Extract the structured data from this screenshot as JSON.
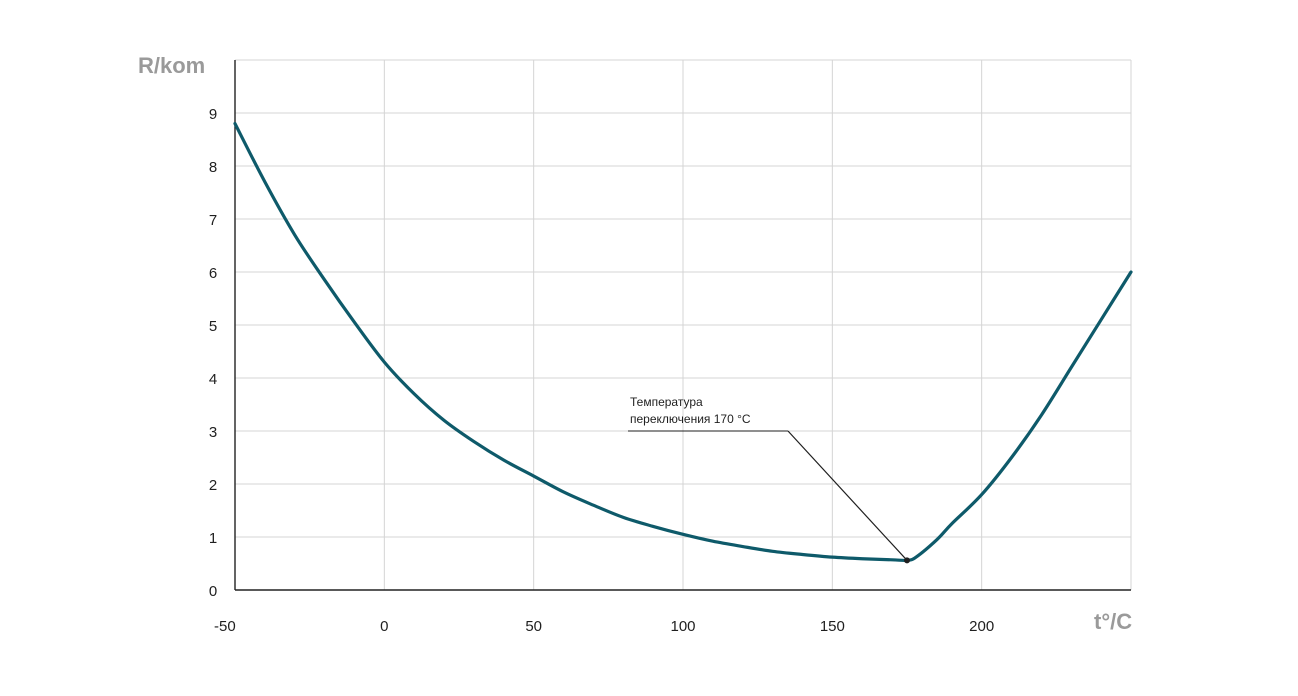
{
  "chart_data": {
    "type": "line",
    "ylabel": "R/kom",
    "xlabel": "t°/C",
    "xlim": [
      -50,
      250
    ],
    "ylim": [
      0,
      10
    ],
    "x_ticks": [
      -50,
      0,
      50,
      100,
      150,
      200
    ],
    "y_ticks": [
      0,
      1,
      2,
      3,
      4,
      5,
      6,
      7,
      8,
      9
    ],
    "grid": true,
    "series": [
      {
        "color": "#0e5a6a",
        "x": [
          -50,
          -40,
          -30,
          -20,
          -10,
          0,
          10,
          20,
          30,
          40,
          50,
          60,
          70,
          80,
          90,
          100,
          110,
          120,
          130,
          140,
          150,
          160,
          170,
          175,
          178,
          185,
          190,
          200,
          210,
          220,
          230,
          240,
          250
        ],
        "y": [
          8.8,
          7.7,
          6.7,
          5.85,
          5.05,
          4.3,
          3.7,
          3.2,
          2.8,
          2.45,
          2.15,
          1.85,
          1.6,
          1.37,
          1.2,
          1.05,
          0.92,
          0.82,
          0.73,
          0.67,
          0.62,
          0.59,
          0.57,
          0.56,
          0.62,
          0.95,
          1.25,
          1.8,
          2.5,
          3.3,
          4.2,
          5.1,
          6.0
        ]
      }
    ],
    "annotations": [
      {
        "text_line1": "Температура",
        "text_line2": "переключения 170 °C",
        "x": 175,
        "y": 0.56
      }
    ]
  }
}
